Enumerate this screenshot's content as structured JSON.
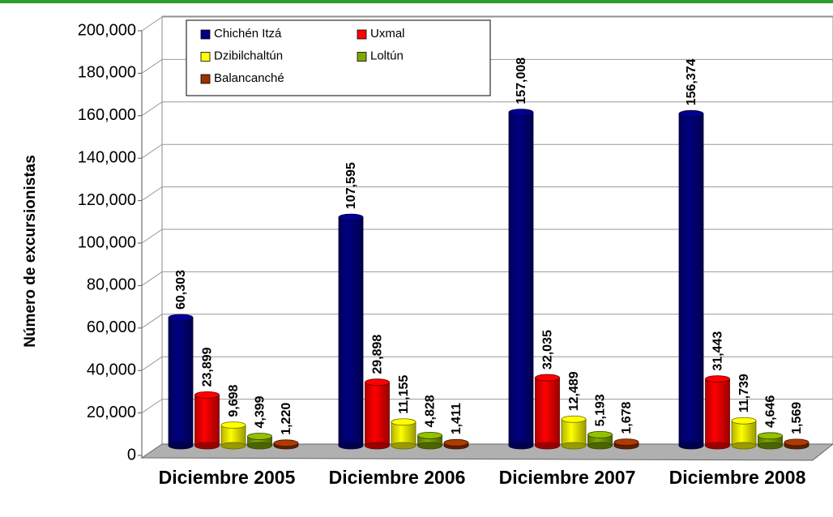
{
  "chart_data": {
    "type": "bar3d",
    "y_label": "Número de excursionistas",
    "categories": [
      "Diciembre 2005",
      "Diciembre 2006",
      "Diciembre 2007",
      "Diciembre 2008"
    ],
    "series": [
      {
        "name": "Chichén Itzá",
        "color": "#000080",
        "values": [
          60303,
          107595,
          157008,
          156374
        ],
        "value_labels": [
          "60,303",
          "107,595",
          "157,008",
          "156,374"
        ]
      },
      {
        "name": "Uxmal",
        "color": "#ff0000",
        "values": [
          23899,
          29898,
          32035,
          31443
        ],
        "value_labels": [
          "23,899",
          "29,898",
          "32,035",
          "31,443"
        ]
      },
      {
        "name": "Dzibilchaltún",
        "color": "#ffff00",
        "values": [
          9698,
          11155,
          12489,
          11739
        ],
        "value_labels": [
          "9,698",
          "11,155",
          "12,489",
          "11,739"
        ]
      },
      {
        "name": "Loltún",
        "color": "#7fa800",
        "values": [
          4399,
          4828,
          5193,
          4646
        ],
        "value_labels": [
          "4,399",
          "4,828",
          "5,193",
          "4,646"
        ]
      },
      {
        "name": "Balancanché",
        "color": "#993300",
        "values": [
          1220,
          1411,
          1678,
          1569
        ],
        "value_labels": [
          "1,220",
          "1,411",
          "1,678",
          "1,569"
        ]
      }
    ],
    "ylim": [
      0,
      200000
    ],
    "yticks": [
      0,
      {
        "value": 20000,
        "label": "20,000"
      },
      {
        "value": 40000,
        "label": "40,000"
      },
      {
        "value": 60000,
        "label": "60,000"
      },
      {
        "value": 80000,
        "label": "80,000"
      },
      {
        "value": 100000,
        "label": "100,000"
      },
      {
        "value": 120000,
        "label": "120,000"
      },
      {
        "value": 140000,
        "label": "140,000"
      },
      {
        "value": 160000,
        "label": "160,000"
      },
      {
        "value": 180000,
        "label": "180,000"
      },
      {
        "value": 200000,
        "label": "200,000"
      }
    ],
    "grid": true,
    "legend": "top-left"
  }
}
